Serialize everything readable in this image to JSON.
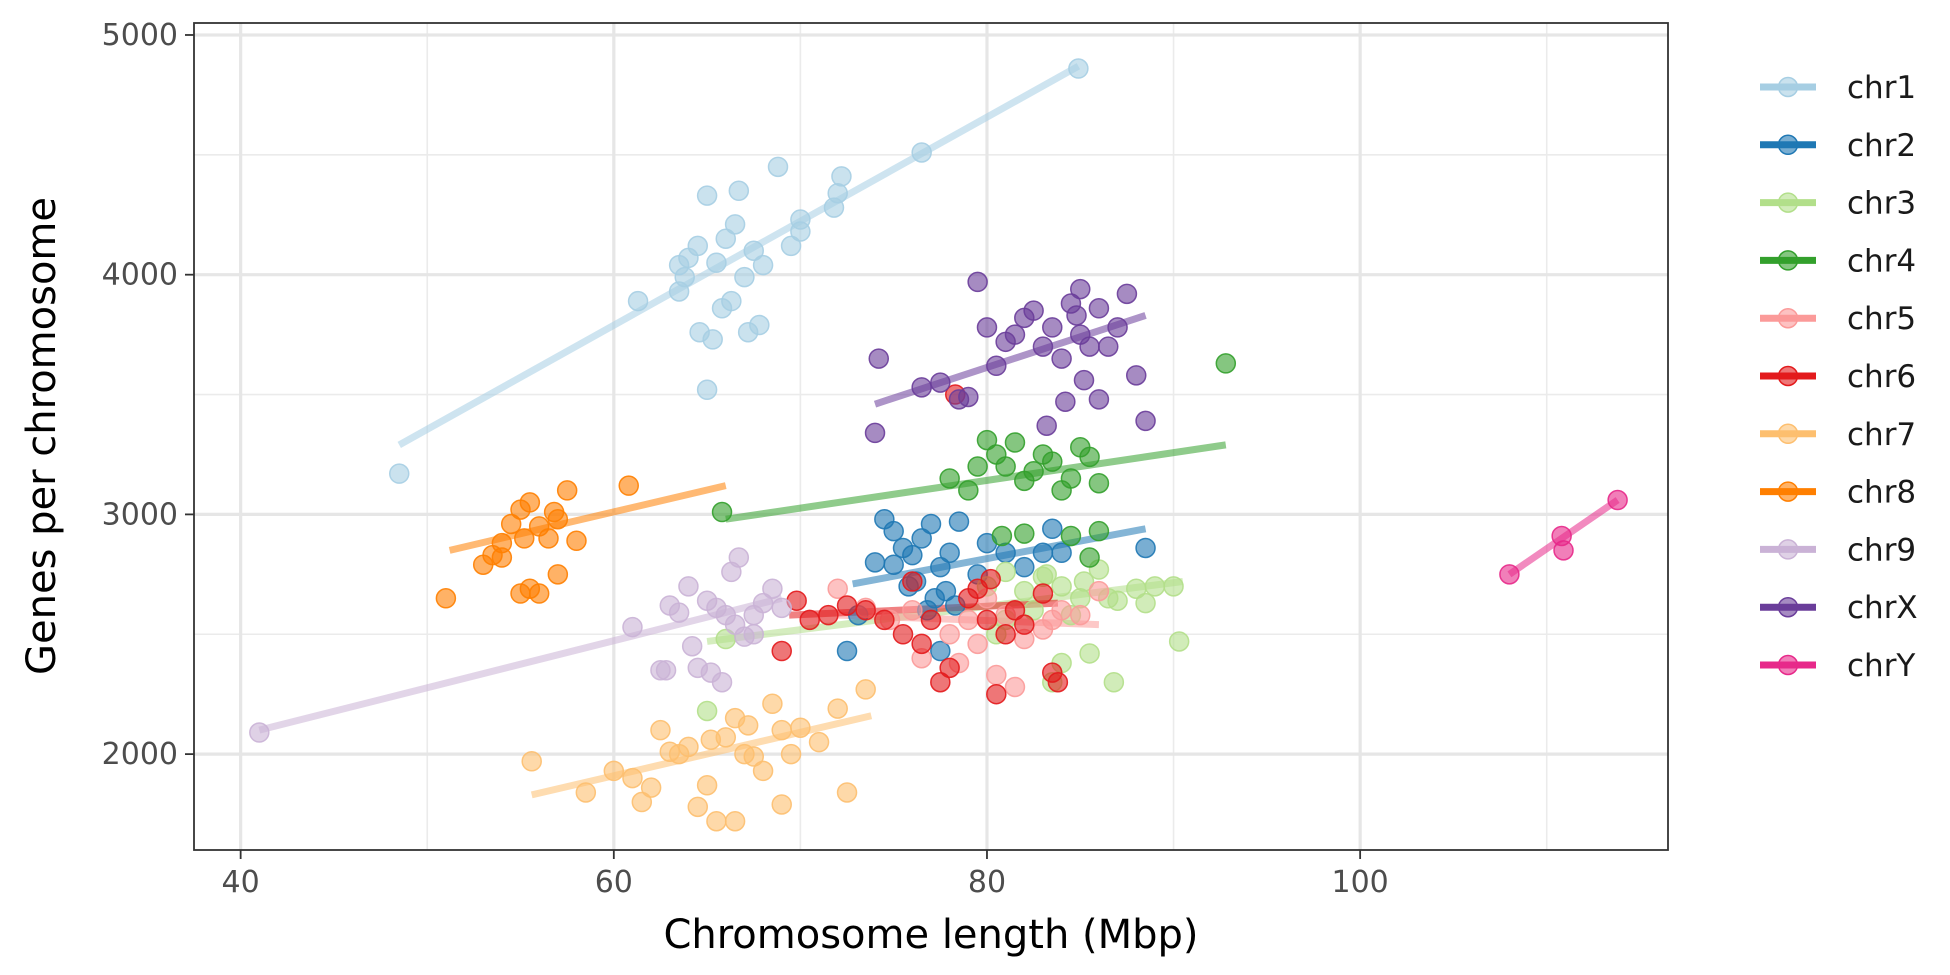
{
  "chart_data": {
    "type": "scatter",
    "title": "",
    "xlabel": "Chromosome length (Mbp)",
    "ylabel": "Genes per chromosome",
    "xlim": [
      37.5,
      116.5
    ],
    "ylim": [
      1600,
      5050
    ],
    "x_ticks": [
      40,
      60,
      80,
      100
    ],
    "x_minor_ticks": [
      50,
      70,
      90,
      110
    ],
    "y_ticks": [
      2000,
      3000,
      4000,
      5000
    ],
    "y_minor_ticks": [
      2500,
      3500,
      4500
    ],
    "grid": true,
    "legend_position": "right",
    "marker_opacity": 0.6,
    "series": [
      {
        "name": "chr1",
        "color": "#A6CEE3",
        "points": [
          [
            48.5,
            3170
          ],
          [
            61.3,
            3890
          ],
          [
            63.5,
            3930
          ],
          [
            64.0,
            4070
          ],
          [
            64.5,
            4120
          ],
          [
            65.0,
            4330
          ],
          [
            65.5,
            4050
          ],
          [
            66.0,
            4150
          ],
          [
            66.5,
            4210
          ],
          [
            67.0,
            3990
          ],
          [
            67.5,
            4100
          ],
          [
            68.0,
            4040
          ],
          [
            63.8,
            3990
          ],
          [
            64.6,
            3760
          ],
          [
            65.3,
            3730
          ],
          [
            65.8,
            3860
          ],
          [
            66.3,
            3890
          ],
          [
            67.2,
            3760
          ],
          [
            67.8,
            3790
          ],
          [
            65.0,
            3520
          ],
          [
            63.5,
            4040
          ],
          [
            66.7,
            4350
          ],
          [
            68.8,
            4450
          ],
          [
            69.5,
            4120
          ],
          [
            70.0,
            4230
          ],
          [
            70.0,
            4180
          ],
          [
            71.8,
            4280
          ],
          [
            72.2,
            4410
          ],
          [
            72.0,
            4340
          ],
          [
            76.5,
            4510
          ],
          [
            84.9,
            4860
          ]
        ],
        "fit": [
          [
            48.5,
            3290
          ],
          [
            84.9,
            4870
          ]
        ]
      },
      {
        "name": "chr2",
        "color": "#1F78B4",
        "points": [
          [
            72.5,
            2430
          ],
          [
            73.1,
            2580
          ],
          [
            74.0,
            2800
          ],
          [
            74.5,
            2980
          ],
          [
            75.0,
            2930
          ],
          [
            75.5,
            2860
          ],
          [
            76.0,
            2830
          ],
          [
            76.5,
            2900
          ],
          [
            77.0,
            2960
          ],
          [
            77.5,
            2780
          ],
          [
            78.0,
            2840
          ],
          [
            78.5,
            2970
          ],
          [
            76.2,
            2720
          ],
          [
            77.2,
            2650
          ],
          [
            78.3,
            2620
          ],
          [
            79.5,
            2750
          ],
          [
            80.0,
            2880
          ],
          [
            81.0,
            2840
          ],
          [
            82.0,
            2780
          ],
          [
            83.0,
            2840
          ],
          [
            83.5,
            2940
          ],
          [
            84.0,
            2840
          ],
          [
            88.5,
            2860
          ],
          [
            75.8,
            2700
          ],
          [
            77.8,
            2680
          ],
          [
            76.8,
            2600
          ],
          [
            77.5,
            2430
          ],
          [
            75.0,
            2790
          ]
        ],
        "fit": [
          [
            72.8,
            2710
          ],
          [
            88.5,
            2940
          ]
        ]
      },
      {
        "name": "chr3",
        "color": "#B2DF8A",
        "points": [
          [
            65.0,
            2180
          ],
          [
            66.0,
            2480
          ],
          [
            80.0,
            2700
          ],
          [
            81.0,
            2760
          ],
          [
            82.0,
            2680
          ],
          [
            83.0,
            2740
          ],
          [
            84.0,
            2700
          ],
          [
            85.0,
            2650
          ],
          [
            86.0,
            2770
          ],
          [
            87.0,
            2640
          ],
          [
            88.0,
            2690
          ],
          [
            88.5,
            2630
          ],
          [
            89.0,
            2700
          ],
          [
            90.0,
            2700
          ],
          [
            90.3,
            2470
          ],
          [
            83.5,
            2300
          ],
          [
            84.0,
            2380
          ],
          [
            85.5,
            2420
          ],
          [
            86.8,
            2300
          ],
          [
            81.0,
            2560
          ],
          [
            82.5,
            2600
          ],
          [
            80.5,
            2500
          ],
          [
            84.5,
            2580
          ],
          [
            85.2,
            2720
          ],
          [
            86.5,
            2650
          ],
          [
            83.2,
            2750
          ]
        ],
        "fit": [
          [
            65.0,
            2470
          ],
          [
            90.5,
            2720
          ]
        ]
      },
      {
        "name": "chr4",
        "color": "#33A02C",
        "points": [
          [
            65.8,
            3010
          ],
          [
            78.0,
            3150
          ],
          [
            79.0,
            3100
          ],
          [
            80.0,
            3310
          ],
          [
            81.0,
            3200
          ],
          [
            82.0,
            3140
          ],
          [
            83.0,
            3250
          ],
          [
            84.0,
            3100
          ],
          [
            85.0,
            3280
          ],
          [
            86.0,
            3130
          ],
          [
            79.5,
            3200
          ],
          [
            80.5,
            3250
          ],
          [
            81.5,
            3300
          ],
          [
            82.5,
            3180
          ],
          [
            83.5,
            3220
          ],
          [
            84.5,
            3150
          ],
          [
            85.5,
            3240
          ],
          [
            80.8,
            2910
          ],
          [
            82.0,
            2920
          ],
          [
            84.5,
            2910
          ],
          [
            85.5,
            2820
          ],
          [
            86.0,
            2930
          ],
          [
            92.8,
            3630
          ]
        ],
        "fit": [
          [
            66.0,
            2980
          ],
          [
            92.8,
            3290
          ]
        ]
      },
      {
        "name": "chr5",
        "color": "#FB9A99",
        "points": [
          [
            72.0,
            2690
          ],
          [
            73.5,
            2610
          ],
          [
            74.8,
            2560
          ],
          [
            76.0,
            2600
          ],
          [
            78.0,
            2500
          ],
          [
            79.0,
            2560
          ],
          [
            80.0,
            2650
          ],
          [
            81.0,
            2580
          ],
          [
            82.0,
            2480
          ],
          [
            83.0,
            2520
          ],
          [
            84.0,
            2600
          ],
          [
            85.0,
            2580
          ],
          [
            86.0,
            2680
          ],
          [
            78.5,
            2380
          ],
          [
            80.5,
            2330
          ],
          [
            81.5,
            2280
          ],
          [
            79.5,
            2460
          ],
          [
            83.5,
            2560
          ],
          [
            76.5,
            2400
          ]
        ],
        "fit": [
          [
            72.0,
            2580
          ],
          [
            86.0,
            2540
          ]
        ]
      },
      {
        "name": "chr6",
        "color": "#E31A1C",
        "points": [
          [
            69.0,
            2430
          ],
          [
            69.8,
            2640
          ],
          [
            70.5,
            2560
          ],
          [
            71.5,
            2580
          ],
          [
            72.5,
            2620
          ],
          [
            73.5,
            2600
          ],
          [
            74.5,
            2560
          ],
          [
            75.5,
            2500
          ],
          [
            76.5,
            2460
          ],
          [
            77.5,
            2300
          ],
          [
            78.0,
            2360
          ],
          [
            79.0,
            2650
          ],
          [
            80.0,
            2560
          ],
          [
            80.5,
            2250
          ],
          [
            81.0,
            2500
          ],
          [
            81.5,
            2600
          ],
          [
            82.0,
            2540
          ],
          [
            83.0,
            2670
          ],
          [
            83.5,
            2340
          ],
          [
            83.8,
            2300
          ],
          [
            78.3,
            3500
          ],
          [
            79.5,
            2690
          ],
          [
            80.2,
            2730
          ],
          [
            76.0,
            2720
          ],
          [
            77.0,
            2560
          ]
        ],
        "fit": [
          [
            69.4,
            2580
          ],
          [
            83.8,
            2630
          ]
        ]
      },
      {
        "name": "chr7",
        "color": "#FDBF6F",
        "points": [
          [
            55.6,
            1970
          ],
          [
            58.5,
            1840
          ],
          [
            60.0,
            1930
          ],
          [
            61.0,
            1900
          ],
          [
            61.5,
            1800
          ],
          [
            62.0,
            1860
          ],
          [
            62.5,
            2100
          ],
          [
            63.5,
            2000
          ],
          [
            64.0,
            2030
          ],
          [
            64.5,
            1780
          ],
          [
            65.0,
            1870
          ],
          [
            65.5,
            1720
          ],
          [
            66.0,
            2070
          ],
          [
            66.5,
            2150
          ],
          [
            67.0,
            2000
          ],
          [
            67.5,
            1990
          ],
          [
            68.0,
            1930
          ],
          [
            68.5,
            2210
          ],
          [
            69.0,
            2100
          ],
          [
            69.5,
            2000
          ],
          [
            70.0,
            2110
          ],
          [
            71.0,
            2050
          ],
          [
            72.0,
            2190
          ],
          [
            72.5,
            1840
          ],
          [
            73.5,
            2270
          ],
          [
            69.0,
            1790
          ],
          [
            66.5,
            1720
          ],
          [
            63.0,
            2010
          ],
          [
            65.2,
            2060
          ],
          [
            67.2,
            2120
          ]
        ],
        "fit": [
          [
            55.6,
            1830
          ],
          [
            73.8,
            2160
          ]
        ]
      },
      {
        "name": "chr8",
        "color": "#FF7F00",
        "points": [
          [
            51.0,
            2650
          ],
          [
            53.0,
            2790
          ],
          [
            54.0,
            2880
          ],
          [
            54.5,
            2960
          ],
          [
            55.0,
            3020
          ],
          [
            55.5,
            3050
          ],
          [
            56.0,
            2950
          ],
          [
            56.5,
            2900
          ],
          [
            57.0,
            2980
          ],
          [
            57.5,
            3100
          ],
          [
            58.0,
            2890
          ],
          [
            60.8,
            3120
          ],
          [
            55.0,
            2670
          ],
          [
            55.5,
            2690
          ],
          [
            56.0,
            2670
          ],
          [
            57.0,
            2750
          ],
          [
            54.0,
            2820
          ],
          [
            55.2,
            2900
          ],
          [
            56.8,
            3010
          ],
          [
            53.5,
            2830
          ]
        ],
        "fit": [
          [
            51.2,
            2850
          ],
          [
            66.0,
            3120
          ]
        ]
      },
      {
        "name": "chr9",
        "color": "#CAB2D6",
        "points": [
          [
            41.0,
            2090
          ],
          [
            61.0,
            2530
          ],
          [
            62.5,
            2350
          ],
          [
            63.0,
            2620
          ],
          [
            63.5,
            2590
          ],
          [
            64.0,
            2700
          ],
          [
            64.5,
            2360
          ],
          [
            65.0,
            2640
          ],
          [
            65.5,
            2610
          ],
          [
            66.0,
            2580
          ],
          [
            66.5,
            2540
          ],
          [
            67.0,
            2490
          ],
          [
            67.5,
            2580
          ],
          [
            68.0,
            2630
          ],
          [
            68.5,
            2690
          ],
          [
            69.0,
            2610
          ],
          [
            64.2,
            2450
          ],
          [
            65.2,
            2340
          ],
          [
            65.8,
            2300
          ],
          [
            66.3,
            2760
          ],
          [
            66.7,
            2820
          ],
          [
            67.5,
            2500
          ],
          [
            62.8,
            2350
          ]
        ],
        "fit": [
          [
            41.0,
            2100
          ],
          [
            69.0,
            2650
          ]
        ]
      },
      {
        "name": "chrX",
        "color": "#6A3D9A",
        "points": [
          [
            74.0,
            3340
          ],
          [
            74.2,
            3650
          ],
          [
            76.5,
            3530
          ],
          [
            77.5,
            3550
          ],
          [
            78.5,
            3480
          ],
          [
            79.0,
            3490
          ],
          [
            79.5,
            3970
          ],
          [
            80.0,
            3780
          ],
          [
            80.5,
            3620
          ],
          [
            81.0,
            3720
          ],
          [
            81.5,
            3750
          ],
          [
            82.0,
            3820
          ],
          [
            82.5,
            3850
          ],
          [
            83.0,
            3700
          ],
          [
            83.5,
            3780
          ],
          [
            84.0,
            3650
          ],
          [
            84.5,
            3880
          ],
          [
            85.0,
            3750
          ],
          [
            85.5,
            3700
          ],
          [
            86.0,
            3860
          ],
          [
            86.5,
            3700
          ],
          [
            87.0,
            3780
          ],
          [
            87.5,
            3920
          ],
          [
            88.0,
            3580
          ],
          [
            88.5,
            3390
          ],
          [
            83.2,
            3370
          ],
          [
            84.2,
            3470
          ],
          [
            85.2,
            3560
          ],
          [
            86.0,
            3480
          ],
          [
            85.0,
            3940
          ],
          [
            84.8,
            3830
          ]
        ],
        "fit": [
          [
            74.0,
            3460
          ],
          [
            88.5,
            3830
          ]
        ]
      },
      {
        "name": "chrY",
        "color": "#E7298A",
        "points": [
          [
            108.0,
            2750
          ],
          [
            110.8,
            2910
          ],
          [
            110.9,
            2850
          ],
          [
            113.8,
            3060
          ]
        ],
        "fit": [
          [
            108.0,
            2750
          ],
          [
            113.8,
            3060
          ]
        ]
      }
    ]
  }
}
